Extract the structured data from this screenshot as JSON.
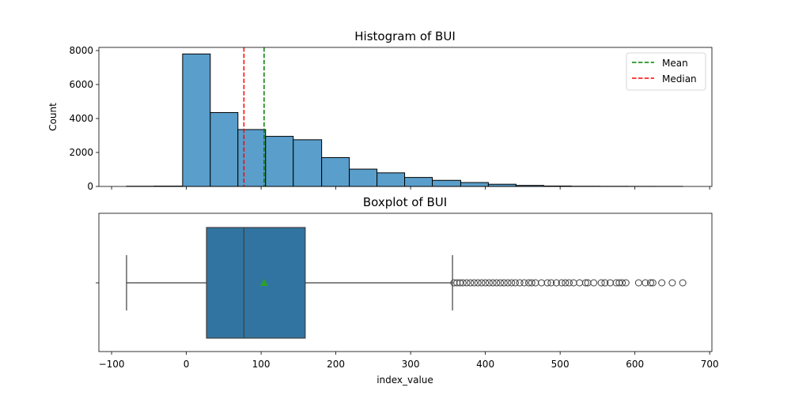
{
  "chart_data": [
    {
      "type": "bar",
      "title": "Histogram of BUI",
      "xlabel": "",
      "ylabel": "Count",
      "xlim": [
        -117,
        703
      ],
      "ylim": [
        0,
        8000
      ],
      "yticks": [
        0,
        2000,
        4000,
        6000,
        8000
      ],
      "bins": [
        {
          "x0": -80,
          "x1": -43,
          "count": 12
        },
        {
          "x0": -43,
          "x1": -5,
          "count": 20
        },
        {
          "x0": -5,
          "x1": 32,
          "count": 7800
        },
        {
          "x0": 32,
          "x1": 69,
          "count": 4350
        },
        {
          "x0": 69,
          "x1": 106,
          "count": 3350
        },
        {
          "x0": 106,
          "x1": 143,
          "count": 2950
        },
        {
          "x0": 143,
          "x1": 181,
          "count": 2750
        },
        {
          "x0": 181,
          "x1": 218,
          "count": 1700
        },
        {
          "x0": 218,
          "x1": 255,
          "count": 1020
        },
        {
          "x0": 255,
          "x1": 292,
          "count": 800
        },
        {
          "x0": 292,
          "x1": 329,
          "count": 530
        },
        {
          "x0": 329,
          "x1": 367,
          "count": 360
        },
        {
          "x0": 367,
          "x1": 404,
          "count": 230
        },
        {
          "x0": 404,
          "x1": 441,
          "count": 130
        },
        {
          "x0": 441,
          "x1": 478,
          "count": 60
        },
        {
          "x0": 478,
          "x1": 515,
          "count": 25
        },
        {
          "x0": 515,
          "x1": 553,
          "count": 12
        },
        {
          "x0": 553,
          "x1": 590,
          "count": 8
        },
        {
          "x0": 590,
          "x1": 627,
          "count": 5
        },
        {
          "x0": 627,
          "x1": 664,
          "count": 3
        }
      ],
      "mean": 104,
      "median": 77,
      "legend": {
        "placement": "top-right",
        "entries": [
          {
            "label": "Mean",
            "color": "#008000",
            "style": "dashed"
          },
          {
            "label": "Median",
            "color": "#ff0000",
            "style": "dashed"
          }
        ]
      },
      "bar_color": "#5a9ecb"
    },
    {
      "type": "box",
      "title": "Boxplot of BUI",
      "xlabel": "index_value",
      "ylabel": "",
      "xlim": [
        -117,
        703
      ],
      "xticks": [
        -100,
        0,
        100,
        200,
        300,
        400,
        500,
        600,
        700
      ],
      "min_whisker": -80,
      "q1": 27,
      "median": 77,
      "q3": 159,
      "max_whisker": 356,
      "mean": 104,
      "outliers": [
        358,
        362,
        366,
        370,
        375,
        380,
        385,
        390,
        395,
        400,
        405,
        410,
        415,
        420,
        425,
        430,
        435,
        440,
        446,
        452,
        458,
        462,
        467,
        475,
        483,
        488,
        495,
        502,
        507,
        512,
        518,
        526,
        534,
        537,
        545,
        555,
        560,
        567,
        575,
        579,
        583,
        588,
        605,
        614,
        621,
        624,
        636,
        650,
        664
      ],
      "box_color": "#3274a1",
      "mean_marker_color": "#2ca02c"
    }
  ]
}
